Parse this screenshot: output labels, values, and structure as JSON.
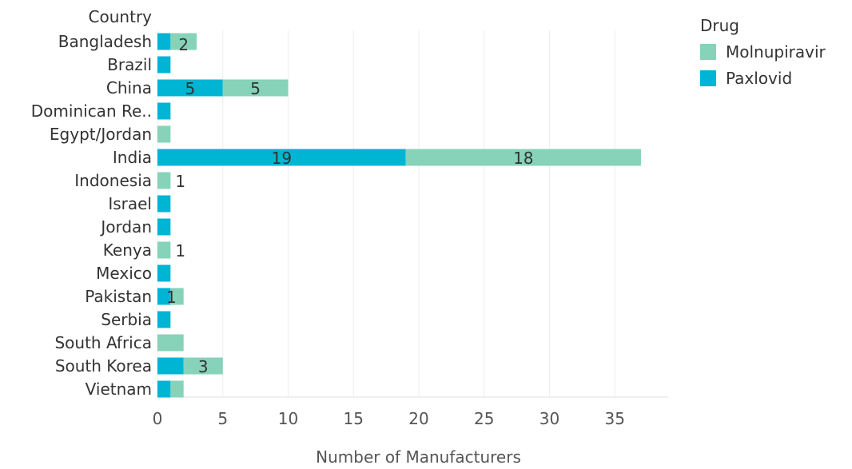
{
  "chart_data": {
    "type": "bar",
    "orientation": "horizontal",
    "stacked": true,
    "row_header": "Country",
    "xlabel": "Number of Manufacturers",
    "xlim": [
      0,
      38
    ],
    "x_ticks": [
      0,
      5,
      10,
      15,
      20,
      25,
      30,
      35
    ],
    "grid": "vertical",
    "categories": [
      "Bangladesh",
      "Brazil",
      "China",
      "Dominican Re..",
      "Egypt/Jordan",
      "India",
      "Indonesia",
      "Israel",
      "Jordan",
      "Kenya",
      "Mexico",
      "Pakistan",
      "Serbia",
      "South Africa",
      "South Korea",
      "Vietnam"
    ],
    "series": [
      {
        "name": "Paxlovid",
        "color": "#00b4d4",
        "values": [
          1,
          1,
          5,
          1,
          0,
          19,
          0,
          1,
          1,
          0,
          1,
          1,
          1,
          0,
          2,
          1
        ],
        "labels": [
          "",
          "",
          "5",
          "",
          "",
          "19",
          "",
          "",
          "",
          "",
          "",
          "",
          "",
          "",
          "",
          ""
        ]
      },
      {
        "name": "Molnupiravir",
        "color": "#86d3b9",
        "values": [
          2,
          0,
          5,
          0,
          1,
          18,
          1,
          0,
          0,
          1,
          0,
          1,
          0,
          2,
          3,
          1
        ],
        "labels": [
          "2",
          "",
          "5",
          "",
          "",
          "18",
          "1",
          "",
          "",
          "1",
          "",
          "1",
          "",
          "",
          "3",
          ""
        ]
      }
    ],
    "legend": {
      "title": "Drug",
      "position": "top-right",
      "items": [
        {
          "name": "Molnupiravir",
          "color": "#86d3b9"
        },
        {
          "name": "Paxlovid",
          "color": "#00b4d4"
        }
      ]
    }
  }
}
